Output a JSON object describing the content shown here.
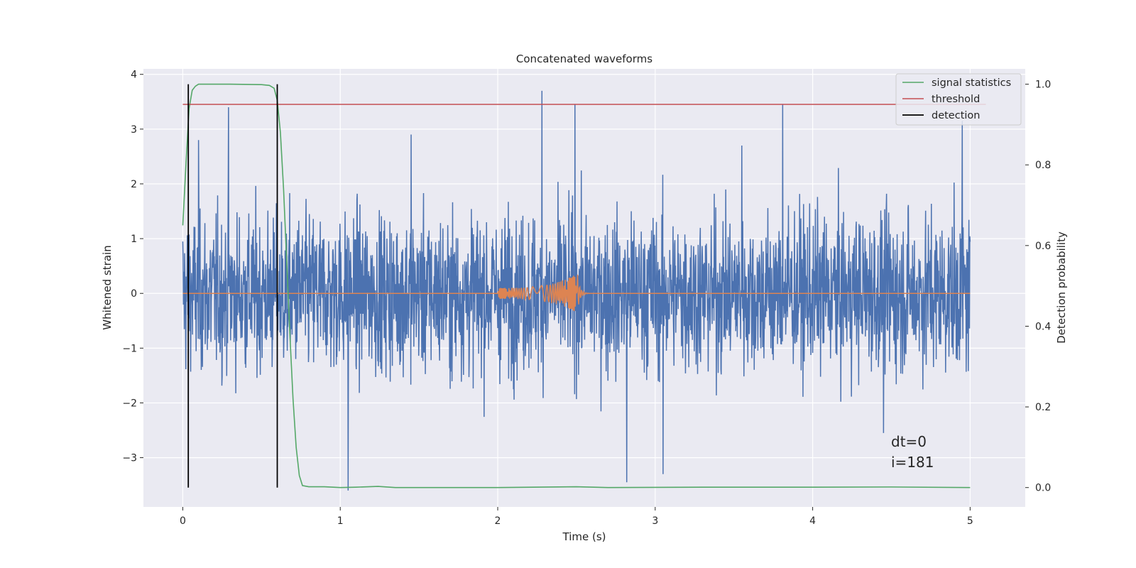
{
  "chart_data": {
    "type": "line",
    "title": "Concatenated waveforms",
    "xlabel": "Time (s)",
    "ylabel_left": "Whitened strain",
    "ylabel_right": "Detection probability",
    "xlim": [
      -0.25,
      5.35
    ],
    "ylim_left": [
      -3.9,
      4.1
    ],
    "ylim_right": [
      -0.048,
      1.038
    ],
    "x_ticks": [
      0,
      1,
      2,
      3,
      4,
      5
    ],
    "y_ticks_left": [
      -3,
      -2,
      -1,
      0,
      1,
      2,
      3,
      4
    ],
    "y_ticks_right": [
      0.0,
      0.2,
      0.4,
      0.6,
      0.8,
      1.0
    ],
    "y_tick_labels_left": [
      "−3",
      "−2",
      "−1",
      "0",
      "1",
      "2",
      "3",
      "4"
    ],
    "y_tick_labels_right": [
      "0.0",
      "0.2",
      "0.4",
      "0.6",
      "0.8",
      "1.0"
    ],
    "x_tick_labels": [
      "0",
      "1",
      "2",
      "3",
      "4",
      "5"
    ],
    "grid": true,
    "legend_position": "top-right",
    "legend": [
      "signal statistics",
      "threshold",
      "detection"
    ],
    "series": [
      {
        "name": "strain",
        "axis": "left",
        "color": "#4c72b0",
        "kind": "noise",
        "x_range": [
          0,
          5
        ],
        "typical_range": [
          -1.6,
          1.8
        ],
        "peaks": [
          {
            "x": 0.29,
            "y": 3.4
          },
          {
            "x": 0.1,
            "y": 2.8
          },
          {
            "x": 1.05,
            "y": -3.6
          },
          {
            "x": 2.28,
            "y": 3.7
          },
          {
            "x": 2.49,
            "y": 3.45
          },
          {
            "x": 2.82,
            "y": -3.45
          },
          {
            "x": 3.05,
            "y": -3.3
          },
          {
            "x": 3.81,
            "y": 3.45
          },
          {
            "x": 4.95,
            "y": 3.15
          },
          {
            "x": 1.45,
            "y": 2.9
          },
          {
            "x": 3.55,
            "y": 2.7
          },
          {
            "x": 4.45,
            "y": -2.55
          }
        ]
      },
      {
        "name": "injected signal",
        "axis": "left",
        "color": "#dd8452",
        "kind": "chirp",
        "x_range": [
          0,
          5
        ],
        "chirp_start": 2.0,
        "merger": 2.5,
        "start_amplitude": 0.1,
        "peak_amplitude": 0.35,
        "min_value": -0.55
      },
      {
        "name": "signal statistics",
        "axis": "right",
        "color": "#55a868",
        "points": [
          [
            0.0,
            0.65
          ],
          [
            0.02,
            0.8
          ],
          [
            0.04,
            0.94
          ],
          [
            0.06,
            0.985
          ],
          [
            0.08,
            0.995
          ],
          [
            0.1,
            1.0
          ],
          [
            0.3,
            1.0
          ],
          [
            0.5,
            0.999
          ],
          [
            0.55,
            0.997
          ],
          [
            0.58,
            0.99
          ],
          [
            0.6,
            0.96
          ],
          [
            0.62,
            0.88
          ],
          [
            0.64,
            0.74
          ],
          [
            0.66,
            0.56
          ],
          [
            0.68,
            0.38
          ],
          [
            0.7,
            0.22
          ],
          [
            0.72,
            0.1
          ],
          [
            0.74,
            0.03
          ],
          [
            0.76,
            0.005
          ],
          [
            0.8,
            0.002
          ],
          [
            0.9,
            0.002
          ],
          [
            1.0,
            0.0
          ],
          [
            1.1,
            0.001
          ],
          [
            1.24,
            0.003
          ],
          [
            1.35,
            0.0
          ],
          [
            2.0,
            0.0
          ],
          [
            2.5,
            0.002
          ],
          [
            2.7,
            0.0
          ],
          [
            3.3,
            0.001
          ],
          [
            4.0,
            0.001
          ],
          [
            4.5,
            0.0015
          ],
          [
            5.0,
            0.0
          ]
        ]
      },
      {
        "name": "threshold",
        "axis": "right",
        "color": "#c44e52",
        "points": [
          [
            0.0,
            0.95
          ],
          [
            5.1,
            0.95
          ]
        ]
      },
      {
        "name": "detection",
        "axis": "right",
        "color": "#000000",
        "vlines": [
          0.035,
          0.6
        ],
        "vline_range": [
          0.0,
          1.0
        ]
      }
    ],
    "annotation": {
      "line1": "dt=0",
      "line2": "i=181",
      "x": 4.5,
      "y": -3.3
    }
  }
}
